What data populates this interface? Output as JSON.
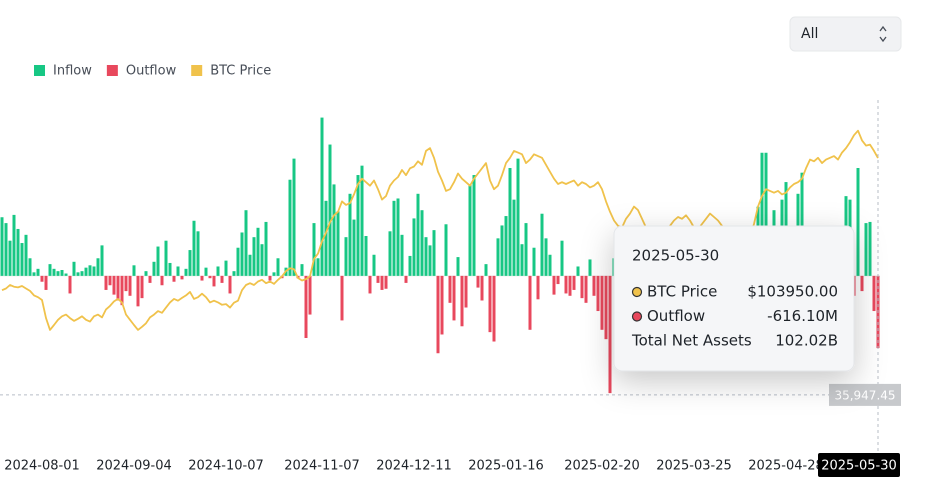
{
  "chart_data": {
    "type": "bar",
    "range_selector": "All",
    "xlim": [
      -0.5,
      219.5
    ],
    "xticks": [
      {
        "value": 10,
        "label": "2024-08-01"
      },
      {
        "value": 33,
        "label": "2024-09-04"
      },
      {
        "value": 56,
        "label": "2024-10-07"
      },
      {
        "value": 80,
        "label": "2024-11-07"
      },
      {
        "value": 103,
        "label": "2024-12-11"
      },
      {
        "value": 126,
        "label": "2025-01-16"
      },
      {
        "value": 150,
        "label": "2025-02-20"
      },
      {
        "value": 173,
        "label": "2025-03-25"
      },
      {
        "value": 196,
        "label": "2025-04-28"
      },
      {
        "value": 219,
        "label": "2025-05-30"
      }
    ],
    "ylim": [
      -1400,
      1500
    ],
    "y2lim": [
      23000,
      120600
    ],
    "legend": "top-left",
    "series": [
      {
        "name": "Inflow",
        "type": "bar",
        "color": "#17c784",
        "values": [
          500,
          450,
          300,
          520,
          400,
          280,
          350,
          150,
          30,
          60,
          0,
          0,
          100,
          60,
          40,
          50,
          20,
          0,
          120,
          30,
          40,
          70,
          90,
          80,
          150,
          260,
          0,
          0,
          0,
          0,
          0,
          0,
          0,
          90,
          0,
          0,
          40,
          0,
          120,
          250,
          0,
          300,
          110,
          0,
          80,
          0,
          60,
          220,
          470,
          380,
          0,
          70,
          0,
          0,
          80,
          0,
          130,
          0,
          40,
          240,
          370,
          560,
          180,
          330,
          410,
          270,
          460,
          0,
          30,
          150,
          0,
          70,
          820,
          1000,
          0,
          100,
          0,
          0,
          450,
          150,
          1350,
          640,
          1120,
          780,
          550,
          0,
          330,
          700,
          480,
          860,
          940,
          340,
          0,
          180,
          0,
          0,
          0,
          380,
          640,
          660,
          350,
          0,
          170,
          490,
          700,
          560,
          330,
          260,
          390,
          0,
          0,
          440,
          0,
          0,
          160,
          0,
          0,
          780,
          860,
          0,
          0,
          100,
          0,
          0,
          320,
          430,
          510,
          920,
          650,
          1000,
          270,
          450,
          0,
          240,
          0,
          530,
          320,
          180,
          0,
          0,
          300,
          0,
          0,
          0,
          80,
          0,
          0,
          140,
          0,
          0,
          0,
          0,
          0,
          150,
          0,
          0,
          210,
          0,
          330,
          0,
          120,
          0,
          0,
          190,
          0,
          80,
          0,
          140,
          260,
          0,
          170,
          0,
          90,
          310,
          0,
          60,
          0,
          240,
          0,
          0,
          120,
          0,
          380,
          0,
          90,
          0,
          0,
          330,
          210,
          590,
          1050,
          1050,
          0,
          560,
          0,
          650,
          800,
          0,
          280,
          700,
          880,
          0,
          250,
          420,
          0,
          380,
          0,
          160,
          0,
          300,
          0,
          680,
          650,
          0,
          920,
          0,
          450,
          460,
          0,
          0
        ]
      },
      {
        "name": "Outflow",
        "type": "bar",
        "color": "#e8485d",
        "values": [
          0,
          0,
          0,
          0,
          0,
          0,
          0,
          0,
          0,
          0,
          -50,
          -120,
          0,
          0,
          0,
          0,
          0,
          -150,
          0,
          0,
          0,
          0,
          0,
          0,
          0,
          0,
          -120,
          -80,
          -160,
          -210,
          -250,
          -130,
          -170,
          0,
          -260,
          -190,
          0,
          -60,
          0,
          0,
          -80,
          0,
          0,
          -50,
          0,
          -30,
          0,
          0,
          0,
          0,
          -40,
          0,
          -20,
          -90,
          0,
          -60,
          0,
          -150,
          0,
          0,
          0,
          0,
          0,
          0,
          0,
          0,
          0,
          -40,
          0,
          0,
          -20,
          0,
          0,
          0,
          -20,
          0,
          -530,
          -330,
          0,
          0,
          0,
          0,
          0,
          0,
          0,
          -380,
          0,
          0,
          0,
          0,
          0,
          0,
          -150,
          0,
          -60,
          -120,
          -110,
          0,
          0,
          0,
          0,
          -60,
          0,
          0,
          0,
          0,
          0,
          0,
          0,
          -660,
          -500,
          0,
          -230,
          -380,
          0,
          -430,
          -270,
          0,
          0,
          -100,
          -210,
          0,
          -480,
          -560,
          0,
          0,
          0,
          0,
          0,
          0,
          0,
          0,
          -460,
          0,
          -200,
          0,
          0,
          0,
          -160,
          -70,
          0,
          -150,
          -170,
          -120,
          0,
          -190,
          -230,
          0,
          -170,
          -300,
          -460,
          -540,
          -1000,
          0,
          -320,
          -180,
          0,
          -90,
          0,
          -250,
          0,
          -410,
          -280,
          0,
          -150,
          0,
          -120,
          0,
          0,
          -70,
          0,
          -220,
          0,
          0,
          -140,
          0,
          -90,
          0,
          -330,
          -480,
          0,
          -200,
          0,
          -150,
          0,
          -260,
          -120,
          0,
          0,
          0,
          0,
          0,
          -180,
          0,
          -140,
          0,
          0,
          -90,
          0,
          0,
          0,
          -160,
          0,
          0,
          -120,
          0,
          -250,
          0,
          -90,
          0,
          -200,
          0,
          0,
          -170,
          0,
          -130,
          0,
          0,
          -300,
          -616.1
        ]
      },
      {
        "name": "BTC Price",
        "type": "line",
        "axis": "y2",
        "color": "#f0c24b",
        "values": [
          66000,
          66500,
          67500,
          67000,
          66800,
          67200,
          66500,
          65800,
          64500,
          64000,
          63200,
          58000,
          54600,
          56000,
          57500,
          58500,
          59000,
          58000,
          57200,
          57800,
          58500,
          57500,
          57000,
          58500,
          59000,
          58200,
          60500,
          61500,
          62800,
          63500,
          62500,
          59000,
          57500,
          56000,
          54600,
          55500,
          56500,
          58200,
          59000,
          60000,
          59500,
          61000,
          62500,
          63500,
          63000,
          63800,
          64500,
          65500,
          63500,
          64000,
          65000,
          64000,
          62500,
          63000,
          62500,
          61800,
          62000,
          61000,
          62400,
          63000,
          66000,
          67500,
          68000,
          67500,
          68500,
          69000,
          68000,
          68500,
          67800,
          69000,
          70000,
          71500,
          72300,
          72000,
          69500,
          68800,
          69200,
          70000,
          75000,
          76500,
          80000,
          82500,
          85500,
          87500,
          88500,
          91500,
          90500,
          91000,
          93500,
          96500,
          98000,
          97000,
          96000,
          97500,
          95000,
          92000,
          93000,
          96000,
          97500,
          98500,
          100500,
          99000,
          101000,
          101500,
          103000,
          102000,
          106000,
          106800,
          104000,
          100000,
          97500,
          94500,
          95000,
          97000,
          99500,
          98000,
          97000,
          96000,
          98000,
          99500,
          101000,
          102500,
          97500,
          95000,
          96000,
          99000,
          102500,
          104000,
          106000,
          105500,
          105000,
          102500,
          103500,
          105000,
          104500,
          104000,
          102000,
          100000,
          98000,
          96500,
          97000,
          96500,
          97000,
          97500,
          96000,
          97000,
          96500,
          95500,
          96000,
          97000,
          95000,
          91500,
          88500,
          86000,
          84500,
          84000,
          86500,
          88000,
          90000,
          89000,
          86500,
          84000,
          82500,
          80500,
          82500,
          84000,
          83000,
          84500,
          86000,
          87000,
          86500,
          87500,
          86000,
          84000,
          83500,
          85000,
          86500,
          88000,
          87000,
          86000,
          84500,
          83000,
          81500,
          80000,
          79000,
          76500,
          78000,
          81500,
          85000,
          90000,
          93000,
          95000,
          94500,
          94000,
          94500,
          93500,
          94000,
          95500,
          96500,
          97000,
          98000,
          101000,
          103500,
          103000,
          104000,
          102500,
          103500,
          104000,
          104500,
          103500,
          105500,
          106800,
          108500,
          110500,
          111800,
          109000,
          107500,
          107800,
          106000,
          103950
        ]
      }
    ],
    "crosshair": {
      "x": 219,
      "y2": {
        "value": 35947.45,
        "label": "35,947.45"
      }
    },
    "tooltip": {
      "date": "2025-05-30",
      "rows": [
        {
          "label": "BTC Price",
          "value": "$103950.00",
          "series": 2
        },
        {
          "label": "Outflow",
          "value": "-616.10M",
          "series": 1
        },
        {
          "label": "Total Net Assets",
          "value": "102.02B"
        }
      ]
    }
  }
}
